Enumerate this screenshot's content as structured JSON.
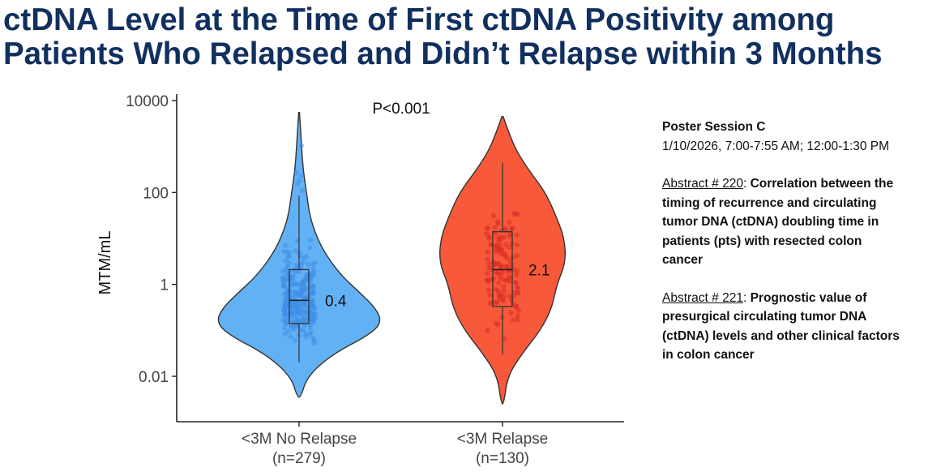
{
  "slide": {
    "title_line1": "ctDNA Level at the Time of First ctDNA Positivity among",
    "title_line2": "Patients Who Relapsed and Didn’t Relapse within 3 Months"
  },
  "chart_data": {
    "type": "violin",
    "title": "",
    "ylabel": "MTM/mL",
    "yscale": "log10",
    "ylim": [
      0.002,
      10000
    ],
    "yticks": [
      0.01,
      1,
      100,
      10000
    ],
    "ytick_labels": [
      "0.01",
      "1",
      "100",
      "10000"
    ],
    "annotation": "P<0.001",
    "groups": [
      {
        "name": "<3M No Relapse",
        "n_label": "(n=279)",
        "color": "#63b1f5",
        "point_color": "#3f8ee8",
        "n_points": 279,
        "median": 0.45,
        "median_label": "0.4",
        "q1": 0.14,
        "q3": 2.1,
        "whisker_low": 0.02,
        "whisker_high": 85,
        "range": [
          0.0035,
          5500
        ],
        "violin_profile": [
          [
            0.0035,
            0.02
          ],
          [
            0.01,
            0.1
          ],
          [
            0.03,
            0.4
          ],
          [
            0.08,
            0.85
          ],
          [
            0.15,
            1.0
          ],
          [
            0.3,
            0.93
          ],
          [
            0.7,
            0.72
          ],
          [
            1.5,
            0.52
          ],
          [
            4,
            0.34
          ],
          [
            10,
            0.22
          ],
          [
            30,
            0.13
          ],
          [
            100,
            0.09
          ],
          [
            300,
            0.05
          ],
          [
            1000,
            0.03
          ],
          [
            5500,
            0.005
          ]
        ],
        "outliers": [
          1050,
          270,
          230,
          180,
          150,
          110
        ]
      },
      {
        "name": "<3M Relapse",
        "n_label": "(n=130)",
        "color": "#f7593a",
        "point_color": "#d92e25",
        "n_points": 130,
        "median": 2.1,
        "median_label": "2.1",
        "q1": 0.33,
        "q3": 14,
        "whisker_low": 0.03,
        "whisker_high": 450,
        "range": [
          0.0025,
          4500
        ],
        "violin_profile": [
          [
            0.0025,
            0.02
          ],
          [
            0.01,
            0.08
          ],
          [
            0.03,
            0.3
          ],
          [
            0.1,
            0.6
          ],
          [
            0.3,
            0.78
          ],
          [
            1,
            0.86
          ],
          [
            3,
            1.0
          ],
          [
            10,
            0.98
          ],
          [
            30,
            0.85
          ],
          [
            100,
            0.68
          ],
          [
            300,
            0.42
          ],
          [
            800,
            0.22
          ],
          [
            2000,
            0.1
          ],
          [
            4500,
            0.01
          ]
        ],
        "outliers": []
      }
    ]
  },
  "poster": {
    "session": "Poster Session C",
    "datetime": "1/10/2026, 7:00-7:55 AM; 12:00-1:30 PM",
    "abstract1": {
      "label": "Abstract # 220",
      "sep": ": ",
      "lines": [
        "Correlation between the",
        "timing of recurrence and circulating",
        "tumor DNA (ctDNA) doubling time in",
        "patients (pts) with resected colon",
        "cancer"
      ]
    },
    "abstract2": {
      "label": "Abstract # 221",
      "sep": ": ",
      "lines": [
        "Prognostic value of",
        "presurgical circulating tumor DNA",
        "(ctDNA) levels and other clinical factors",
        "in colon cancer"
      ]
    }
  }
}
